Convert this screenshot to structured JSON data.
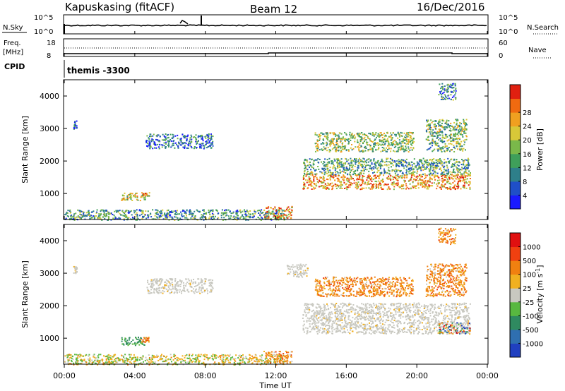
{
  "header": {
    "station": "Kapuskasing (fitACF)",
    "beam": "Beam 12",
    "date": "16/Dec/2016"
  },
  "summary_panels": {
    "nsky_label": "N.Sky",
    "nsky_ticks": [
      "10^5",
      "10^0"
    ],
    "nsearch_label": "N.Search",
    "nsearch_ticks": [
      "10^5",
      "10^0"
    ],
    "freq_label_1": "Freq.",
    "freq_label_2": "[MHz]",
    "freq_ticks": [
      "18",
      "8"
    ],
    "nave_label": "Nave",
    "nave_ticks": [
      "60",
      "0"
    ],
    "cpid_label": "CPID",
    "cpid_value": "themis -3300"
  },
  "chart_data": [
    {
      "type": "heatmap",
      "name": "power",
      "ylabel": "Slant Range [km]",
      "yticks": [
        "1000",
        "2000",
        "3000",
        "4000"
      ],
      "ylim": [
        200,
        4500
      ],
      "xlim": [
        0,
        24
      ],
      "colorbar": {
        "label": "Power [dB]",
        "ticks": [
          "4",
          "8",
          "12",
          "16",
          "20",
          "24",
          "28"
        ],
        "colors": [
          "#1a1aff",
          "#1f4fc8",
          "#2e7f8a",
          "#3f9f5a",
          "#7ab84a",
          "#d8c838",
          "#f0a020",
          "#f06a10",
          "#e02010"
        ]
      },
      "regions": [
        {
          "t0": 0.0,
          "t1": 12.5,
          "r0": 200,
          "r1": 520,
          "level": 0.35
        },
        {
          "t0": 11.3,
          "t1": 12.9,
          "r0": 250,
          "r1": 620,
          "level": 0.7
        },
        {
          "t0": 3.2,
          "t1": 4.6,
          "r0": 800,
          "r1": 1050,
          "level": 0.55
        },
        {
          "t0": 4.3,
          "t1": 4.8,
          "r0": 900,
          "r1": 1050,
          "level": 0.7
        },
        {
          "t0": 4.6,
          "t1": 8.4,
          "r0": 2400,
          "r1": 2850,
          "level": 0.25
        },
        {
          "t0": 13.5,
          "t1": 23.0,
          "r0": 1150,
          "r1": 1600,
          "level": 0.75
        },
        {
          "t0": 13.5,
          "t1": 23.0,
          "r0": 1600,
          "r1": 2100,
          "level": 0.4
        },
        {
          "t0": 14.2,
          "t1": 19.8,
          "r0": 2300,
          "r1": 2900,
          "level": 0.5
        },
        {
          "t0": 20.5,
          "t1": 22.8,
          "r0": 2300,
          "r1": 3300,
          "level": 0.45
        },
        {
          "t0": 21.2,
          "t1": 22.2,
          "r0": 3900,
          "r1": 4400,
          "level": 0.3
        },
        {
          "t0": 0.5,
          "t1": 0.7,
          "r0": 3000,
          "r1": 3250,
          "level": 0.2
        }
      ]
    },
    {
      "type": "heatmap",
      "name": "velocity",
      "ylabel": "Slant Range [km]",
      "yticks": [
        "1000",
        "2000",
        "3000",
        "4000"
      ],
      "ylim": [
        200,
        4500
      ],
      "xlim": [
        0,
        24
      ],
      "xticks": [
        "00:00",
        "04:00",
        "08:00",
        "12:00",
        "16:00",
        "20:00",
        "00:00"
      ],
      "xlabel": "Time UT",
      "colorbar": {
        "label": "Velocity [m s",
        "label_sup": "-1",
        "label_end": "]",
        "ticks": [
          "1000",
          "500",
          "100",
          "25",
          "-25",
          "-100",
          "-500",
          "-1000"
        ],
        "colors": [
          "#2040c0",
          "#2f6fb0",
          "#2f8a60",
          "#58b840",
          "#c8c8c0",
          "#f0b020",
          "#f08010",
          "#f04010",
          "#e01010"
        ]
      },
      "regions": [
        {
          "t0": 0.0,
          "t1": 12.5,
          "r0": 200,
          "r1": 520,
          "kind": "yellowgreen"
        },
        {
          "t0": 11.3,
          "t1": 12.9,
          "r0": 250,
          "r1": 620,
          "kind": "orange"
        },
        {
          "t0": 3.2,
          "t1": 4.6,
          "r0": 800,
          "r1": 1050,
          "kind": "green"
        },
        {
          "t0": 4.3,
          "t1": 4.8,
          "r0": 900,
          "r1": 1050,
          "kind": "orange"
        },
        {
          "t0": 4.6,
          "t1": 8.4,
          "r0": 2400,
          "r1": 2850,
          "kind": "grey"
        },
        {
          "t0": 13.5,
          "t1": 23.0,
          "r0": 1150,
          "r1": 2100,
          "kind": "grey"
        },
        {
          "t0": 21.2,
          "t1": 23.0,
          "r0": 1150,
          "r1": 1500,
          "kind": "mixed"
        },
        {
          "t0": 14.2,
          "t1": 19.8,
          "r0": 2300,
          "r1": 2900,
          "kind": "orange"
        },
        {
          "t0": 20.5,
          "t1": 22.8,
          "r0": 2300,
          "r1": 3300,
          "kind": "orange"
        },
        {
          "t0": 21.2,
          "t1": 22.2,
          "r0": 3900,
          "r1": 4400,
          "kind": "orange"
        },
        {
          "t0": 12.6,
          "t1": 13.8,
          "r0": 2900,
          "r1": 3300,
          "kind": "grey"
        },
        {
          "t0": 0.5,
          "t1": 0.7,
          "r0": 3000,
          "r1": 3250,
          "kind": "grey"
        }
      ]
    }
  ]
}
